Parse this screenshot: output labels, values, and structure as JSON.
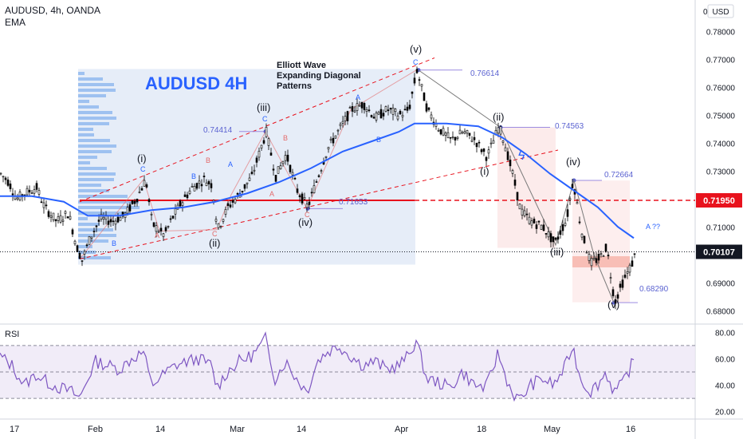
{
  "header": {
    "symbol_line": "AUDUSD, 4h, OANDA",
    "indicator_line": "EMA"
  },
  "currency": "USD",
  "colors": {
    "candle": "#000000",
    "ema": "#2962ff",
    "support": "#e8121d",
    "dashed_red": "#e8121d",
    "rsi_line": "#7e57c2",
    "rsi_band": "#ede7f6",
    "box_blue": "#dbe6f5",
    "box_pink": "#fbe3e3",
    "accent_text": "#2962ff"
  },
  "chart_data": {
    "type": "candlestick",
    "title": "AUDUSD 4H",
    "subtitle": "Elliott Wave Expanding Diagonal Patterns",
    "y_axis": {
      "ticks": [
        "0.78000",
        "0.77000",
        "0.76000",
        "0.75000",
        "0.74000",
        "0.73000",
        "0.72000",
        "0.71000",
        "0.70000",
        "0.69000",
        "0.68000"
      ],
      "ylim": [
        0.6755,
        0.7855
      ],
      "top_label": "0"
    },
    "x_axis": {
      "ticks": [
        "17",
        "Feb",
        "14",
        "Mar",
        "14",
        "Apr",
        "18",
        "May",
        "16"
      ]
    },
    "price_markers": {
      "support": "0.71950",
      "last": "0.70107"
    },
    "wave_labels": [
      "(i)",
      "(ii)",
      "(iii)",
      "(iv)",
      "(v)",
      "(i)",
      "(ii)",
      "(iii)",
      "(iv)",
      "(v)"
    ],
    "small_labels": [
      "A",
      "B",
      "C",
      "A",
      "B",
      "C",
      "A",
      "B",
      "C",
      "A",
      "B",
      "C",
      "A",
      "B",
      "C",
      "A ??"
    ],
    "level_labels": [
      "0.76614",
      "0.74414",
      "0.71653",
      "0.74563",
      "0.72664",
      "0.68290"
    ],
    "price_path": [
      [
        0,
        0.729
      ],
      [
        10,
        0.726
      ],
      [
        20,
        0.72
      ],
      [
        30,
        0.722
      ],
      [
        45,
        0.724
      ],
      [
        55,
        0.717
      ],
      [
        70,
        0.712
      ],
      [
        85,
        0.715
      ],
      [
        95,
        0.703
      ],
      [
        102,
        0.698
      ],
      [
        112,
        0.706
      ],
      [
        125,
        0.713
      ],
      [
        140,
        0.712
      ],
      [
        155,
        0.714
      ],
      [
        170,
        0.72
      ],
      [
        182,
        0.727
      ],
      [
        190,
        0.711
      ],
      [
        205,
        0.707
      ],
      [
        215,
        0.713
      ],
      [
        225,
        0.718
      ],
      [
        240,
        0.724
      ],
      [
        255,
        0.727
      ],
      [
        265,
        0.725
      ],
      [
        272,
        0.709
      ],
      [
        285,
        0.717
      ],
      [
        300,
        0.722
      ],
      [
        315,
        0.728
      ],
      [
        325,
        0.737
      ],
      [
        333,
        0.744
      ],
      [
        345,
        0.728
      ],
      [
        358,
        0.736
      ],
      [
        372,
        0.723
      ],
      [
        385,
        0.717
      ],
      [
        398,
        0.728
      ],
      [
        410,
        0.738
      ],
      [
        425,
        0.745
      ],
      [
        440,
        0.752
      ],
      [
        455,
        0.754
      ],
      [
        470,
        0.749
      ],
      [
        485,
        0.752
      ],
      [
        500,
        0.75
      ],
      [
        512,
        0.752
      ],
      [
        522,
        0.766
      ],
      [
        535,
        0.752
      ],
      [
        550,
        0.745
      ],
      [
        565,
        0.741
      ],
      [
        580,
        0.744
      ],
      [
        595,
        0.741
      ],
      [
        610,
        0.735
      ],
      [
        625,
        0.746
      ],
      [
        632,
        0.74
      ],
      [
        642,
        0.729
      ],
      [
        652,
        0.716
      ],
      [
        665,
        0.712
      ],
      [
        680,
        0.71
      ],
      [
        695,
        0.704
      ],
      [
        710,
        0.713
      ],
      [
        718,
        0.727
      ],
      [
        728,
        0.709
      ],
      [
        740,
        0.697
      ],
      [
        752,
        0.699
      ],
      [
        760,
        0.703
      ],
      [
        770,
        0.683
      ],
      [
        780,
        0.69
      ],
      [
        792,
        0.697
      ],
      [
        797,
        0.701
      ]
    ],
    "ema_path": [
      [
        0,
        0.721
      ],
      [
        40,
        0.721
      ],
      [
        80,
        0.719
      ],
      [
        110,
        0.714
      ],
      [
        150,
        0.714
      ],
      [
        190,
        0.716
      ],
      [
        230,
        0.717
      ],
      [
        270,
        0.719
      ],
      [
        310,
        0.722
      ],
      [
        350,
        0.726
      ],
      [
        390,
        0.731
      ],
      [
        430,
        0.737
      ],
      [
        470,
        0.741
      ],
      [
        500,
        0.744
      ],
      [
        520,
        0.747
      ],
      [
        560,
        0.747
      ],
      [
        600,
        0.746
      ],
      [
        630,
        0.742
      ],
      [
        660,
        0.736
      ],
      [
        690,
        0.729
      ],
      [
        720,
        0.723
      ],
      [
        750,
        0.717
      ],
      [
        775,
        0.71
      ],
      [
        795,
        0.706
      ]
    ],
    "rsi": {
      "ticks": [
        "80.00",
        "60.00",
        "40.00",
        "20.00"
      ],
      "ylim": [
        15,
        85
      ],
      "values": [
        [
          0,
          62
        ],
        [
          15,
          55
        ],
        [
          30,
          40
        ],
        [
          45,
          48
        ],
        [
          60,
          42
        ],
        [
          75,
          38
        ],
        [
          90,
          35
        ],
        [
          100,
          30
        ],
        [
          110,
          45
        ],
        [
          120,
          58
        ],
        [
          135,
          55
        ],
        [
          150,
          52
        ],
        [
          165,
          60
        ],
        [
          180,
          65
        ],
        [
          190,
          40
        ],
        [
          205,
          48
        ],
        [
          220,
          55
        ],
        [
          235,
          58
        ],
        [
          250,
          60
        ],
        [
          265,
          55
        ],
        [
          272,
          38
        ],
        [
          285,
          50
        ],
        [
          300,
          58
        ],
        [
          315,
          62
        ],
        [
          325,
          68
        ],
        [
          333,
          75
        ],
        [
          345,
          45
        ],
        [
          358,
          58
        ],
        [
          372,
          45
        ],
        [
          385,
          35
        ],
        [
          398,
          58
        ],
        [
          410,
          65
        ],
        [
          425,
          70
        ],
        [
          440,
          62
        ],
        [
          455,
          55
        ],
        [
          470,
          58
        ],
        [
          485,
          52
        ],
        [
          500,
          55
        ],
        [
          512,
          62
        ],
        [
          522,
          74
        ],
        [
          535,
          45
        ],
        [
          550,
          42
        ],
        [
          565,
          38
        ],
        [
          580,
          50
        ],
        [
          595,
          40
        ],
        [
          610,
          38
        ],
        [
          625,
          65
        ],
        [
          632,
          50
        ],
        [
          642,
          35
        ],
        [
          652,
          28
        ],
        [
          665,
          40
        ],
        [
          680,
          45
        ],
        [
          695,
          40
        ],
        [
          710,
          55
        ],
        [
          718,
          70
        ],
        [
          728,
          45
        ],
        [
          740,
          35
        ],
        [
          752,
          42
        ],
        [
          760,
          50
        ],
        [
          770,
          35
        ],
        [
          780,
          40
        ],
        [
          792,
          55
        ],
        [
          797,
          60
        ]
      ]
    }
  },
  "rsi_label": "RSI"
}
